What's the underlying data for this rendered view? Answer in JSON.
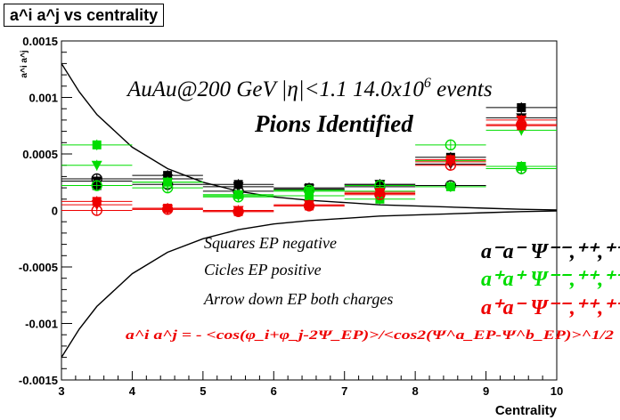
{
  "chart_data": {
    "type": "scatter",
    "title": "a^i a^j vs centrality",
    "xlabel": "Centrality",
    "ylabel": "a^i a^j",
    "xlim": [
      3,
      10
    ],
    "ylim": [
      -0.0015,
      0.0015
    ],
    "xticks": [
      "3",
      "4",
      "5",
      "6",
      "7",
      "8",
      "9",
      "10"
    ],
    "yticks": [
      "-0.0015",
      "-0.001",
      "-0.0005",
      "0",
      "0.0005",
      "0.001",
      "0.0015"
    ],
    "x": [
      3.5,
      4.5,
      5.5,
      6.5,
      7.5,
      8.5,
      9.5
    ],
    "annotations": {
      "header1": "AuAu@200 GeV |η|<1.1 14.0x10",
      "header1_sup": "6",
      "header1_tail": " events",
      "header2": "Pions Identified",
      "legend_squares": "Squares EP negative",
      "legend_circles": "Cicles EP positive",
      "legend_arrows": "Arrow down EP both charges",
      "formula": "a^i a^j = - <cos(φ_i+φ_j-2Ψ_EP)>/<cos2(Ψ^a_EP-Ψ^b_EP)>^1/2",
      "key_mm": "a⁻a⁻  Ψ⁻⁻,⁺⁺,⁺⁻",
      "key_pp": "a⁺a⁺  Ψ⁻⁻,⁺⁺,⁺⁻",
      "key_pm": "a⁺a⁻  Ψ⁻⁻,⁺⁺,⁺⁻"
    },
    "series": [
      {
        "name": "a⁻a⁻",
        "color": "#000000",
        "marker": "square",
        "values": [
          0.00022,
          0.00031,
          0.00023,
          0.0002,
          0.00023,
          0.00047,
          0.00091
        ]
      },
      {
        "name": "a⁻a⁻",
        "color": "#000000",
        "marker": "circle",
        "values": [
          0.00028,
          0.00023,
          0.00017,
          0.00018,
          0.00021,
          0.00022,
          0.00037
        ]
      },
      {
        "name": "a⁻a⁻",
        "color": "#000000",
        "marker": "triangle-down",
        "values": [
          0.00026,
          0.00028,
          0.00021,
          0.00019,
          0.00023,
          0.00041,
          0.00082
        ]
      },
      {
        "name": "a⁺a⁺",
        "color": "#00dd00",
        "marker": "square",
        "values": [
          0.00058,
          0.00025,
          0.00014,
          0.00013,
          0.0001,
          0.00021,
          0.00039
        ]
      },
      {
        "name": "a⁺a⁺",
        "color": "#00dd00",
        "marker": "circle",
        "values": [
          0.00022,
          0.0002,
          0.00012,
          0.00018,
          0.00022,
          0.00058,
          0.00037
        ]
      },
      {
        "name": "a⁺a⁺",
        "color": "#00dd00",
        "marker": "triangle-down",
        "values": [
          0.0004,
          0.00025,
          0.00013,
          0.00017,
          0.00017,
          0.00044,
          0.00071
        ]
      },
      {
        "name": "a⁺a⁻",
        "color": "#ee0000",
        "marker": "square",
        "values": [
          8e-05,
          2e-05,
          -1e-05,
          4e-05,
          0.00016,
          0.00045,
          0.00075
        ]
      },
      {
        "name": "a⁺a⁻",
        "color": "#ee0000",
        "marker": "circle",
        "values": [
          0.0,
          1e-05,
          -1e-05,
          4e-05,
          0.00014,
          0.0004,
          0.00076
        ]
      },
      {
        "name": "a⁺a⁻",
        "color": "#ee0000",
        "marker": "triangle-down",
        "values": [
          5e-05,
          1e-05,
          0.0,
          5e-05,
          0.00015,
          0.00043,
          0.0008
        ]
      }
    ],
    "envelope": {
      "x": [
        3,
        3.25,
        3.5,
        4,
        4.5,
        5,
        5.5,
        6,
        6.5,
        7,
        7.5,
        8,
        8.5,
        9,
        9.5,
        10
      ],
      "values": [
        0.0013,
        0.00105,
        0.00085,
        0.00056,
        0.00037,
        0.00025,
        0.00017,
        0.00012,
        9e-05,
        7e-05,
        5e-05,
        4e-05,
        3e-05,
        2e-05,
        1e-05,
        5e-06
      ]
    }
  }
}
